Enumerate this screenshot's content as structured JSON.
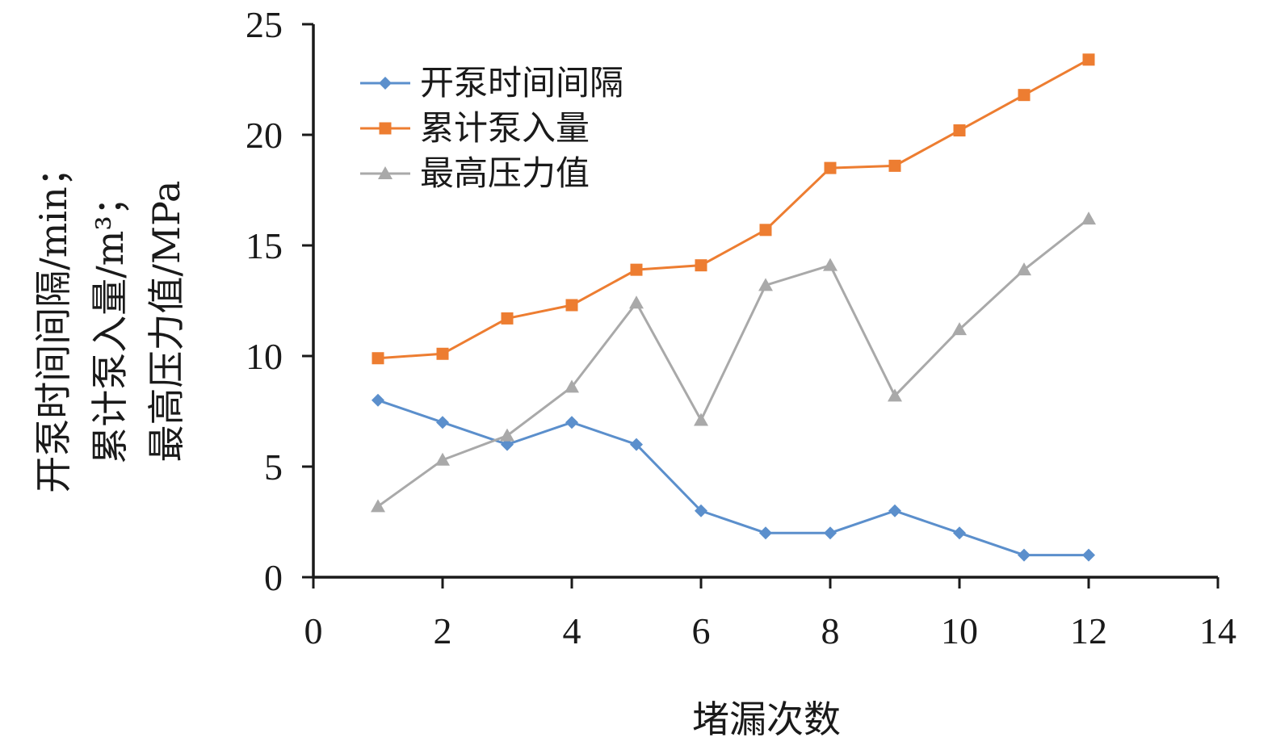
{
  "chart_data": {
    "type": "line",
    "xlabel": "堵漏次数",
    "ylabel_lines": [
      "开泵时间间隔/min；",
      "累计泵入量/m³；",
      "最高压力值/MPa"
    ],
    "xlim": [
      0,
      14
    ],
    "ylim": [
      0,
      25
    ],
    "xticks": [
      "0",
      "2",
      "4",
      "6",
      "8",
      "10",
      "12",
      "14"
    ],
    "yticks": [
      "0",
      "5",
      "10",
      "15",
      "20",
      "25"
    ],
    "grid": false,
    "legend_position": "top-left",
    "x": [
      1,
      2,
      3,
      4,
      5,
      6,
      7,
      8,
      9,
      10,
      11,
      12
    ],
    "series": [
      {
        "name": "开泵时间间隔",
        "color": "#5b8fcc",
        "marker": "diamond",
        "values": [
          8,
          7,
          6,
          7,
          6,
          3,
          2,
          2,
          3,
          2,
          1,
          1
        ]
      },
      {
        "name": "累计泵入量",
        "color": "#ed7d31",
        "marker": "square",
        "values": [
          9.9,
          10.1,
          11.7,
          12.3,
          13.9,
          14.1,
          15.7,
          18.5,
          18.6,
          20.2,
          21.8,
          23.4
        ]
      },
      {
        "name": "最高压力值",
        "color": "#a9a9a9",
        "marker": "triangle",
        "values": [
          3.2,
          5.3,
          6.4,
          8.6,
          12.4,
          7.1,
          13.2,
          14.1,
          8.2,
          11.2,
          13.9,
          16.2
        ]
      }
    ]
  }
}
